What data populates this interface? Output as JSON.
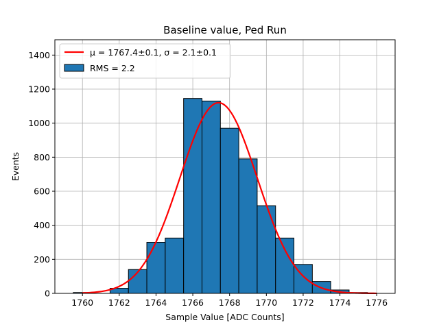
{
  "chart_data": {
    "type": "bar",
    "title": "Baseline value, Ped Run",
    "xlabel": "Sample Value [ADC Counts]",
    "ylabel": "Events",
    "xlim": [
      1758.5,
      1777.0
    ],
    "ylim": [
      0,
      1490
    ],
    "x_ticks": [
      1760,
      1762,
      1764,
      1766,
      1768,
      1770,
      1772,
      1774,
      1776
    ],
    "y_ticks": [
      0,
      200,
      400,
      600,
      800,
      1000,
      1200,
      1400
    ],
    "grid": true,
    "legend_position": "top-left",
    "histogram": {
      "name": "RMS = 2.2",
      "color": "#1f77b4",
      "edge_color": "#000000",
      "bins": [
        {
          "x0": 1759.5,
          "x1": 1760.5,
          "value": 5
        },
        {
          "x0": 1760.5,
          "x1": 1761.5,
          "value": 0
        },
        {
          "x0": 1761.5,
          "x1": 1762.5,
          "value": 30
        },
        {
          "x0": 1762.5,
          "x1": 1763.5,
          "value": 140
        },
        {
          "x0": 1763.5,
          "x1": 1764.5,
          "value": 300
        },
        {
          "x0": 1764.5,
          "x1": 1765.5,
          "value": 325
        },
        {
          "x0": 1765.5,
          "x1": 1766.5,
          "value": 1145
        },
        {
          "x0": 1766.5,
          "x1": 1767.5,
          "value": 1130
        },
        {
          "x0": 1767.5,
          "x1": 1768.5,
          "value": 970
        },
        {
          "x0": 1768.5,
          "x1": 1769.5,
          "value": 790
        },
        {
          "x0": 1769.5,
          "x1": 1770.5,
          "value": 515
        },
        {
          "x0": 1770.5,
          "x1": 1771.5,
          "value": 325
        },
        {
          "x0": 1771.5,
          "x1": 1772.5,
          "value": 170
        },
        {
          "x0": 1772.5,
          "x1": 1773.5,
          "value": 70
        },
        {
          "x0": 1773.5,
          "x1": 1774.5,
          "value": 20
        },
        {
          "x0": 1774.5,
          "x1": 1775.5,
          "value": 5
        }
      ]
    },
    "fit": {
      "name": "μ = 1767.4±0.1, σ = 2.1±0.1",
      "type": "gaussian",
      "color": "#ff0000",
      "mu": 1767.4,
      "sigma": 2.1,
      "amplitude": 1120,
      "x_range": [
        1760,
        1776
      ]
    }
  }
}
